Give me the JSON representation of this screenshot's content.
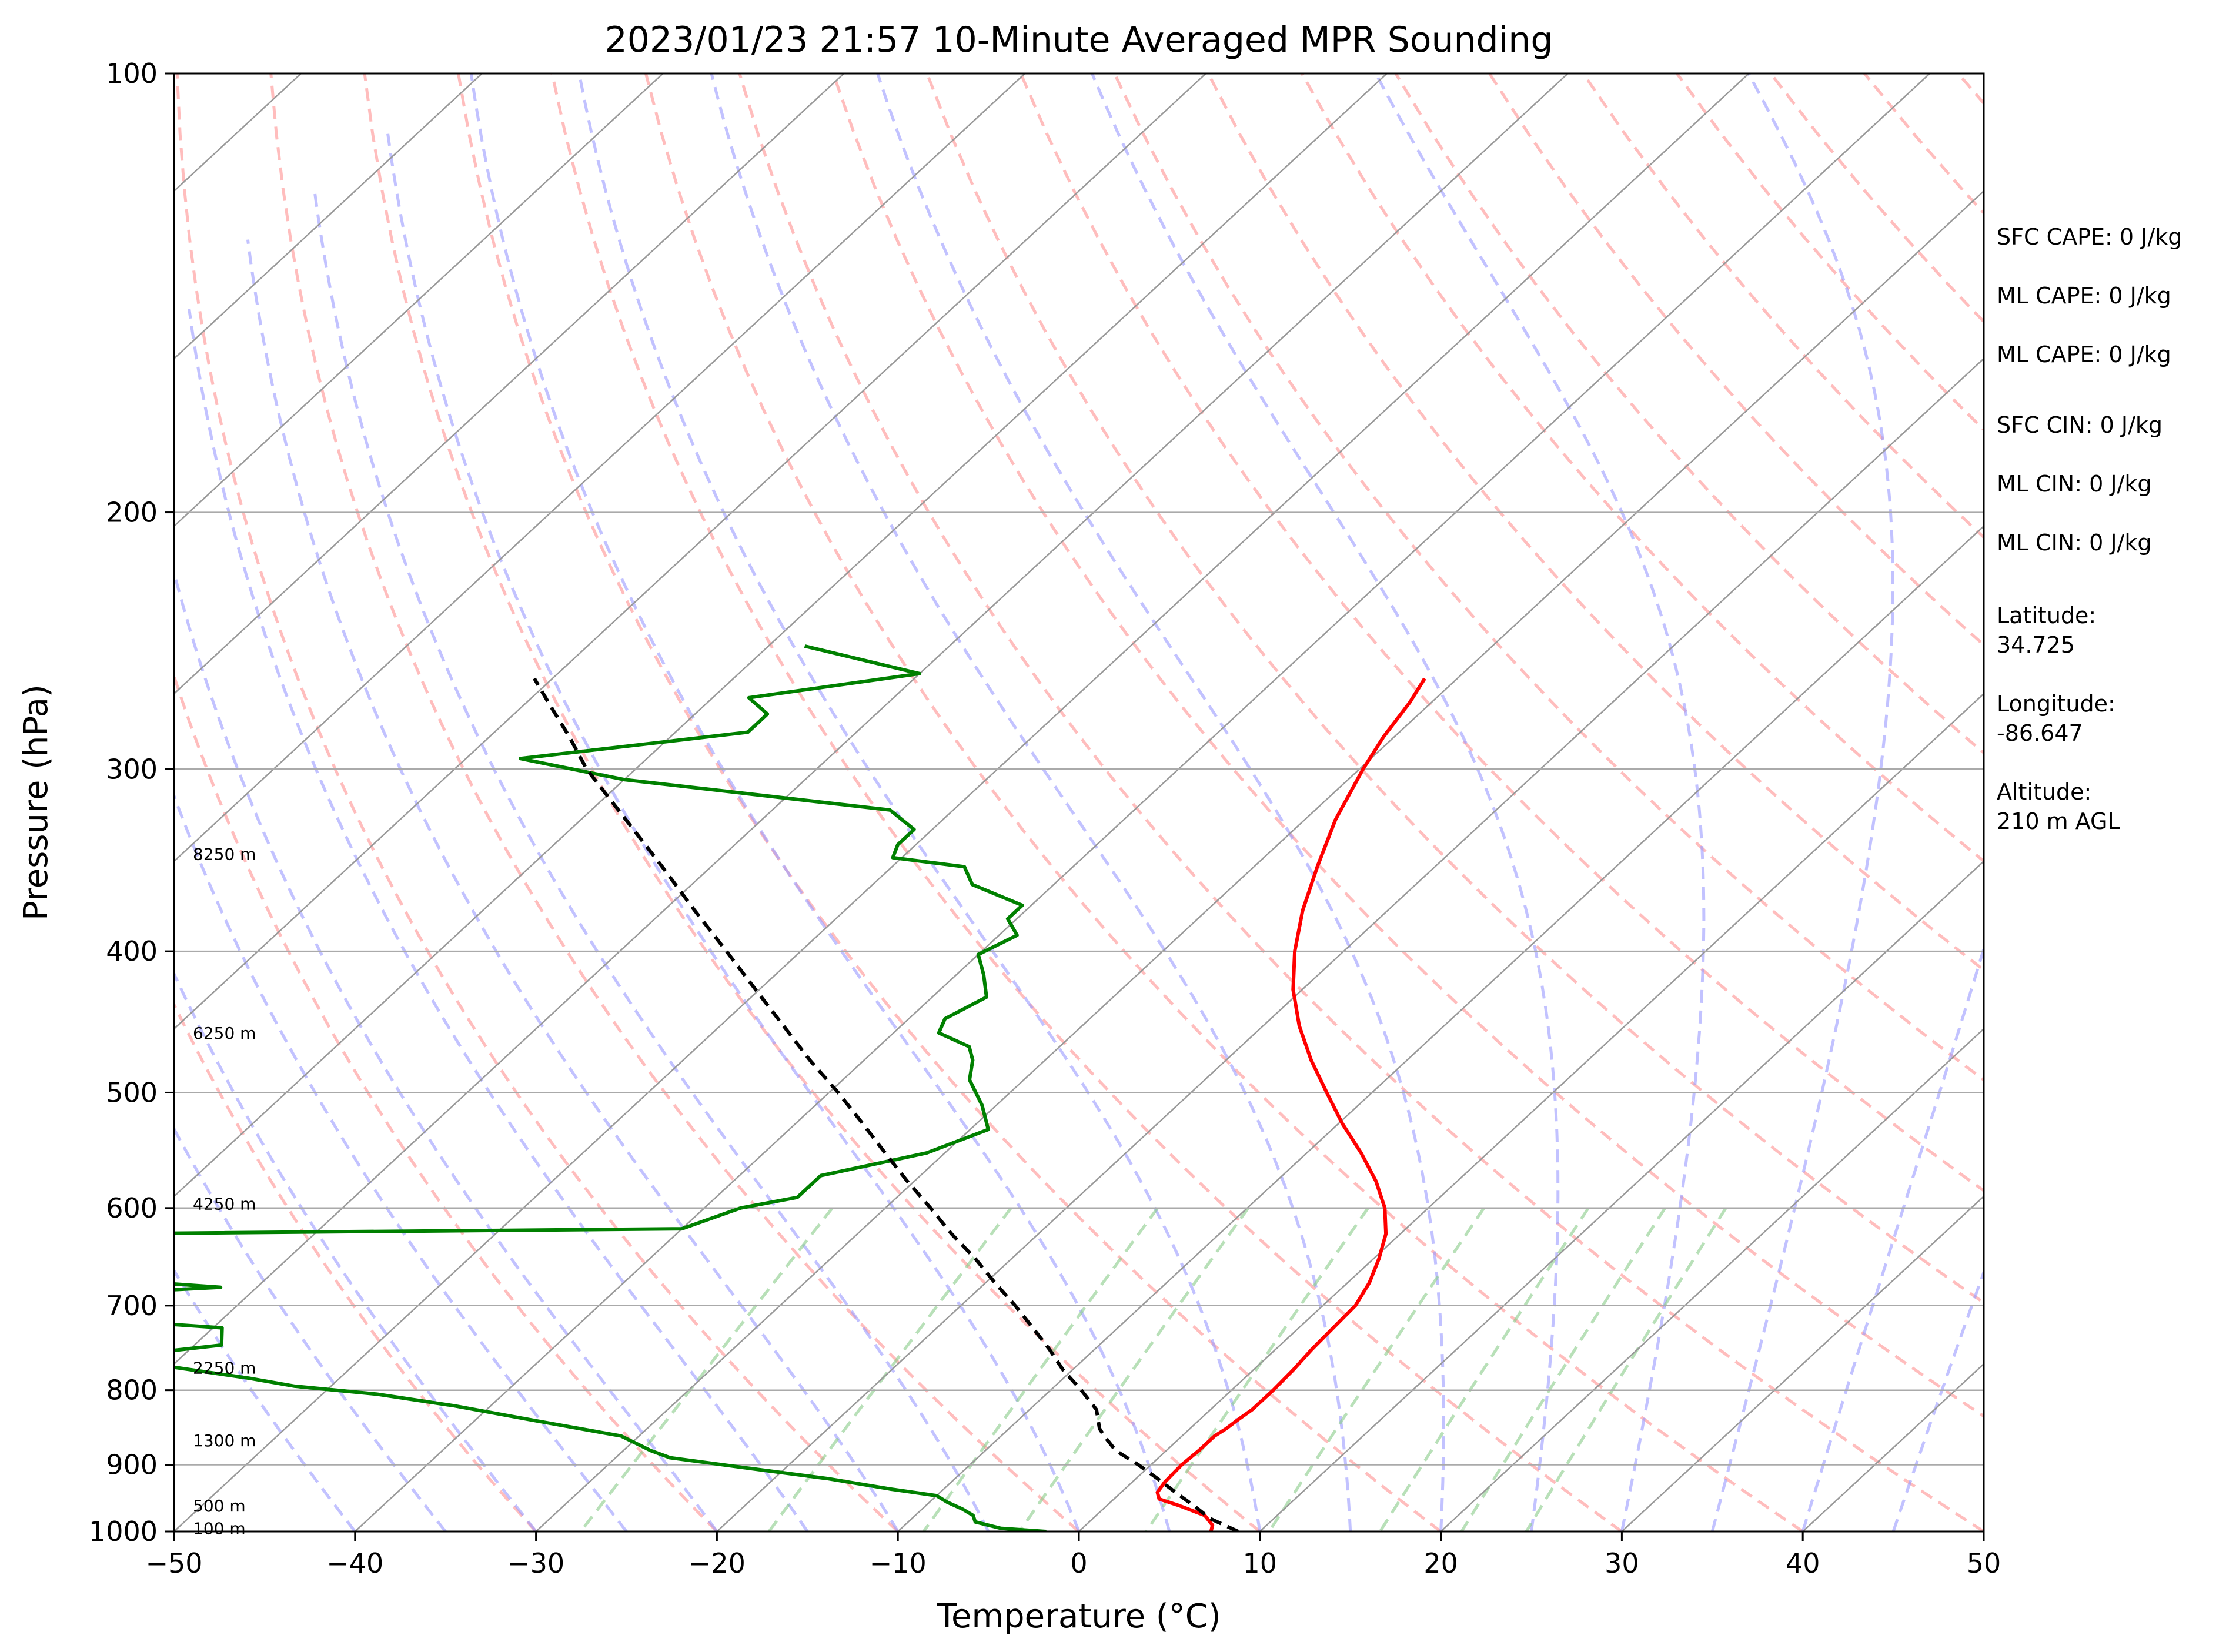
{
  "chart_data": {
    "type": "line",
    "subtype": "skew-t log-p",
    "title": "2023/01/23 21:57 10-Minute Averaged MPR Sounding",
    "xlabel": "Temperature (°C)",
    "ylabel": "Pressure (hPa)",
    "xlim": [
      -50,
      50
    ],
    "ylim": [
      1000,
      100
    ],
    "y_scale": "log",
    "x_ticks": [
      "−50",
      "−40",
      "−30",
      "−20",
      "−10",
      "0",
      "10",
      "20",
      "30",
      "40",
      "50"
    ],
    "y_ticks": [
      "100",
      "200",
      "300",
      "400",
      "500",
      "600",
      "700",
      "800",
      "900",
      "1000"
    ],
    "grid": true,
    "colors": {
      "temperature": "#ff0000",
      "dewpoint": "#008000",
      "parcel": "#000000",
      "isotherms": "#999999",
      "dry_adiabats": "#ff9999",
      "moist_adiabats": "#9999ff",
      "mixing_ratio": "#88cc88"
    },
    "series": [
      {
        "key": "temperature",
        "points": [
          [
            7.3,
            1000
          ],
          [
            7.0,
            990
          ],
          [
            6.0,
            975
          ],
          [
            4.0,
            960
          ],
          [
            2.5,
            950
          ],
          [
            2.0,
            940
          ],
          [
            1.8,
            925
          ],
          [
            1.7,
            900
          ],
          [
            1.8,
            880
          ],
          [
            1.8,
            860
          ],
          [
            2.0,
            850
          ],
          [
            2.1,
            840
          ],
          [
            2.3,
            825
          ],
          [
            2.3,
            800
          ],
          [
            2.2,
            775
          ],
          [
            2.0,
            750
          ],
          [
            1.9,
            725
          ],
          [
            1.8,
            700
          ],
          [
            1.2,
            675
          ],
          [
            0.3,
            650
          ],
          [
            -0.8,
            625
          ],
          [
            -2.4,
            600
          ],
          [
            -4.5,
            575
          ],
          [
            -7.0,
            550
          ],
          [
            -9.8,
            525
          ],
          [
            -12.5,
            500
          ],
          [
            -15.3,
            475
          ],
          [
            -18.0,
            450
          ],
          [
            -20.5,
            425
          ],
          [
            -22.7,
            400
          ],
          [
            -24.7,
            375
          ],
          [
            -26.5,
            350
          ],
          [
            -28.3,
            325
          ],
          [
            -29.8,
            300
          ],
          [
            -30.6,
            285
          ],
          [
            -31.2,
            270
          ],
          [
            -31.8,
            260
          ]
        ]
      },
      {
        "key": "dewpoint",
        "points": [
          [
            -1.8,
            1000
          ],
          [
            -4.5,
            995
          ],
          [
            -6.3,
            985
          ],
          [
            -6.8,
            975
          ],
          [
            -7.8,
            965
          ],
          [
            -9.0,
            955
          ],
          [
            -10.0,
            945
          ],
          [
            -13.0,
            935
          ],
          [
            -17.0,
            920
          ],
          [
            -22.0,
            905
          ],
          [
            -27.0,
            890
          ],
          [
            -28.5,
            880
          ],
          [
            -31.0,
            860
          ],
          [
            -36.5,
            840
          ],
          [
            -42.0,
            820
          ],
          [
            -47.0,
            805
          ],
          [
            -52.0,
            795
          ],
          [
            -55.0,
            785
          ],
          [
            -64.0,
            760
          ],
          [
            -58.5,
            745
          ],
          [
            -59.5,
            725
          ],
          [
            -71.0,
            710
          ],
          [
            -80.0,
            700
          ],
          [
            -62.0,
            680
          ],
          [
            -78.0,
            660
          ],
          [
            -76.0,
            640
          ],
          [
            -72.0,
            625
          ],
          [
            -40.0,
            620
          ],
          [
            -38.0,
            600
          ],
          [
            -35.5,
            590
          ],
          [
            -35.5,
            570
          ],
          [
            -31.0,
            550
          ],
          [
            -29.0,
            530
          ],
          [
            -30.8,
            510
          ],
          [
            -33.0,
            490
          ],
          [
            -34.0,
            475
          ],
          [
            -35.0,
            465
          ],
          [
            -37.5,
            455
          ],
          [
            -38.0,
            445
          ],
          [
            -37.0,
            430
          ],
          [
            -38.5,
            415
          ],
          [
            -40.0,
            402
          ],
          [
            -39.0,
            390
          ],
          [
            -40.5,
            380
          ],
          [
            -40.5,
            372
          ],
          [
            -44.5,
            360
          ],
          [
            -46.0,
            350
          ],
          [
            -50.5,
            345
          ],
          [
            -51.0,
            338
          ],
          [
            -51.0,
            330
          ],
          [
            -53.5,
            320
          ],
          [
            -70.0,
            305
          ],
          [
            -77.0,
            295
          ],
          [
            -66.0,
            283
          ],
          [
            -66.0,
            275
          ],
          [
            -68.0,
            268
          ],
          [
            -60.0,
            258
          ],
          [
            -68.0,
            247
          ]
        ]
      },
      {
        "key": "parcel",
        "points": [
          [
            8.8,
            1000
          ],
          [
            6.5,
            980
          ],
          [
            4.8,
            960
          ],
          [
            3.0,
            940
          ],
          [
            1.2,
            920
          ],
          [
            -0.7,
            900
          ],
          [
            -2.8,
            880
          ],
          [
            -4.3,
            860
          ],
          [
            -5.0,
            850
          ],
          [
            -6.3,
            825
          ],
          [
            -8.3,
            800
          ],
          [
            -10.5,
            775
          ],
          [
            -12.5,
            750
          ],
          [
            -14.7,
            725
          ],
          [
            -17.0,
            700
          ],
          [
            -19.5,
            675
          ],
          [
            -22.0,
            650
          ],
          [
            -24.8,
            625
          ],
          [
            -27.5,
            600
          ],
          [
            -30.4,
            575
          ],
          [
            -33.3,
            550
          ],
          [
            -36.3,
            525
          ],
          [
            -39.5,
            500
          ],
          [
            -43.0,
            475
          ],
          [
            -46.5,
            450
          ],
          [
            -50.2,
            425
          ],
          [
            -54.1,
            400
          ],
          [
            -58.3,
            375
          ],
          [
            -62.7,
            350
          ],
          [
            -67.5,
            325
          ],
          [
            -72.7,
            300
          ],
          [
            -75.6,
            285
          ],
          [
            -78.8,
            270
          ],
          [
            -81.0,
            260
          ]
        ]
      }
    ],
    "altitude_labels": [
      "8250 m",
      "6250 m",
      "4250 m",
      "2250 m",
      "1300 m",
      "500 m",
      "100 m"
    ],
    "info": {
      "sfc_cape": "SFC CAPE: 0 J/kg",
      "ml_cape_1": "ML CAPE: 0 J/kg",
      "ml_cape_2": "ML CAPE: 0 J/kg",
      "sfc_cin": "SFC CIN: 0 J/kg",
      "ml_cin_1": "ML CIN: 0 J/kg",
      "ml_cin_2": "ML CIN: 0 J/kg",
      "latitude_label": "Latitude:",
      "latitude_value": "34.725",
      "longitude_label": "Longitude:",
      "longitude_value": "-86.647",
      "altitude_label": "Altitude:",
      "altitude_value": "210 m AGL"
    }
  }
}
